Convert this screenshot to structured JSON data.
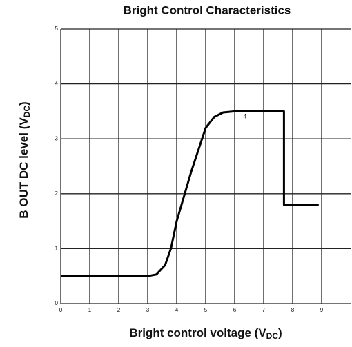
{
  "chart_data": {
    "type": "line",
    "title": "Bright Control Characteristics",
    "xlabel": {
      "text": "Bright control voltage (V",
      "sub": "DC",
      "end": ")"
    },
    "ylabel": {
      "text": "B OUT DC level (V",
      "sub": "DC",
      "end": ")"
    },
    "x": [
      0,
      3,
      3.3,
      3.6,
      3.8,
      4,
      4.5,
      5,
      5.3,
      5.6,
      6,
      7.7,
      7.7,
      8,
      8.9
    ],
    "series": [
      {
        "name": "B OUT",
        "color": "#000000",
        "values": [
          0.5,
          0.5,
          0.53,
          0.7,
          1.0,
          1.5,
          2.4,
          3.2,
          3.4,
          3.48,
          3.5,
          3.5,
          1.8,
          1.8,
          1.8
        ]
      }
    ],
    "annotations": [
      {
        "text": "4",
        "x": 6.35,
        "y": 3.4
      }
    ],
    "xlim": [
      0,
      10
    ],
    "ylim": [
      0,
      5
    ],
    "xticks": [
      0,
      1,
      2,
      3,
      4,
      5,
      6,
      7,
      8,
      9
    ],
    "yticks": [
      0,
      1,
      2,
      3,
      4,
      5
    ],
    "grid": true
  }
}
